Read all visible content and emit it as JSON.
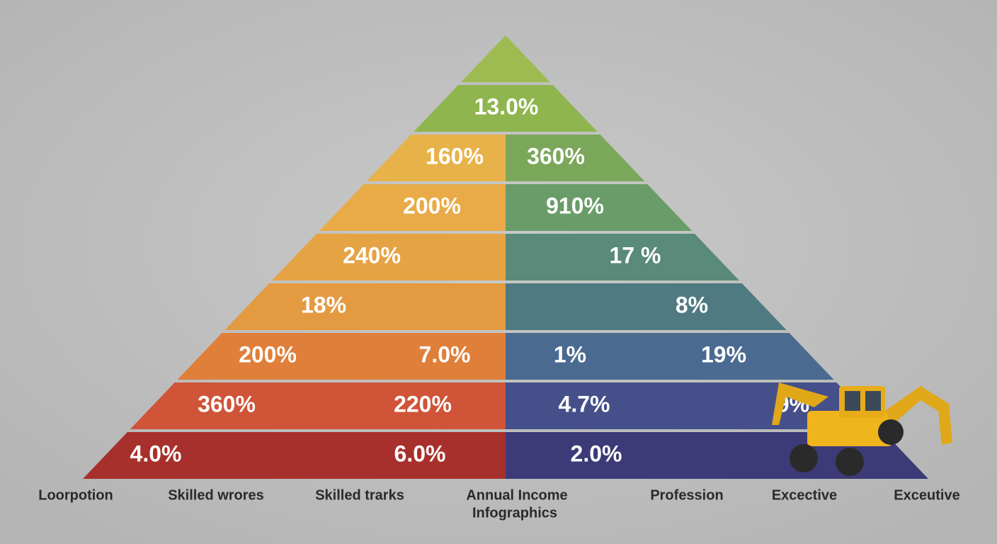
{
  "pyramid": {
    "rows": [
      {
        "labels": [
          "13.0%"
        ]
      },
      {
        "labels": [
          "160%",
          "360%"
        ]
      },
      {
        "labels": [
          "200%",
          "910%"
        ]
      },
      {
        "labels": [
          "240%",
          "17 %"
        ]
      },
      {
        "labels": [
          "18%",
          "8%"
        ]
      },
      {
        "labels": [
          "200%",
          "7.0%",
          "1%",
          "19%"
        ]
      },
      {
        "labels": [
          "360%",
          "220%",
          "4.7%",
          "9%"
        ]
      },
      {
        "labels": [
          "4.0%",
          "6.0%",
          "2.0%"
        ]
      }
    ]
  },
  "footer": {
    "labels": [
      "Loorpotion",
      "Skilled wrores",
      "Skilled trarks",
      "Annual Income",
      "Infographics",
      "Profession",
      "Excective",
      "Exceutive"
    ]
  }
}
